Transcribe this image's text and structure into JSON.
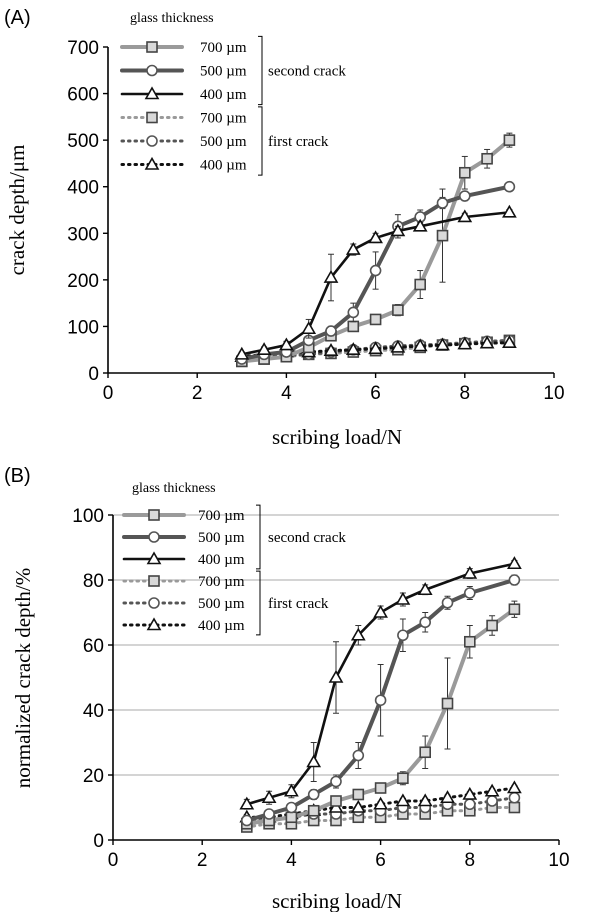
{
  "colors": {
    "s700": "#9a9a9a",
    "s500": "#555555",
    "s400": "#111111"
  },
  "chart_data": [
    {
      "panel": "(A)",
      "type": "line",
      "xlabel": "scribing load/N",
      "ylabel": "crack depth/μm",
      "xlim": [
        0,
        10
      ],
      "ylim": [
        0,
        700
      ],
      "xticks": [
        0,
        2,
        4,
        6,
        8,
        10
      ],
      "yticks": [
        0,
        100,
        200,
        300,
        400,
        500,
        600,
        700
      ],
      "grid": false,
      "legend_title": "glass thickness",
      "legend_groups": [
        "second crack",
        "first crack"
      ],
      "series": [
        {
          "name": "700 µm",
          "group": "second crack",
          "style": "solid",
          "marker": "square",
          "color": "#9a9a9a",
          "x": [
            3,
            3.5,
            4,
            4.5,
            5,
            5.5,
            6,
            6.5,
            7,
            7.5,
            8,
            8.5,
            9
          ],
          "y": [
            25,
            30,
            35,
            55,
            80,
            100,
            115,
            135,
            190,
            295,
            430,
            460,
            500
          ],
          "err": [
            4,
            4,
            5,
            6,
            8,
            10,
            10,
            12,
            30,
            100,
            35,
            20,
            15
          ]
        },
        {
          "name": "500 µm",
          "group": "second crack",
          "style": "solid",
          "marker": "circle",
          "color": "#555555",
          "x": [
            3,
            3.5,
            4,
            4.5,
            5,
            5.5,
            6,
            6.5,
            7,
            7.5,
            8,
            9
          ],
          "y": [
            30,
            40,
            45,
            70,
            90,
            130,
            220,
            315,
            335,
            365,
            380,
            400
          ],
          "err": [
            4,
            4,
            5,
            8,
            10,
            20,
            40,
            25,
            15,
            12,
            10,
            8
          ]
        },
        {
          "name": "400 µm",
          "group": "second crack",
          "style": "solid",
          "marker": "triangle",
          "color": "#111111",
          "x": [
            3,
            3.5,
            4,
            4.5,
            5,
            5.5,
            6,
            6.5,
            7,
            8,
            9
          ],
          "y": [
            40,
            50,
            60,
            95,
            205,
            265,
            290,
            305,
            315,
            335,
            345
          ],
          "err": [
            5,
            6,
            8,
            20,
            50,
            12,
            10,
            10,
            8,
            8,
            6
          ]
        },
        {
          "name": "700 µm",
          "group": "first crack",
          "style": "dotted",
          "marker": "square",
          "color": "#9a9a9a",
          "x": [
            3,
            3.5,
            4,
            4.5,
            5,
            5.5,
            6,
            6.5,
            7,
            7.5,
            8,
            8.5,
            9
          ],
          "y": [
            25,
            30,
            35,
            40,
            42,
            45,
            48,
            50,
            55,
            60,
            63,
            66,
            70
          ],
          "err": [
            3,
            3,
            3,
            3,
            4,
            4,
            4,
            4,
            4,
            4,
            4,
            4,
            4
          ]
        },
        {
          "name": "500 µm",
          "group": "first crack",
          "style": "dotted",
          "marker": "circle",
          "color": "#555555",
          "x": [
            3,
            3.5,
            4,
            4.5,
            5,
            5.5,
            6,
            6.5,
            7,
            7.5,
            8,
            8.5,
            9
          ],
          "y": [
            30,
            35,
            38,
            40,
            45,
            50,
            55,
            58,
            60,
            62,
            65,
            68,
            70
          ],
          "err": [
            3,
            3,
            3,
            3,
            4,
            4,
            4,
            4,
            4,
            4,
            4,
            4,
            4
          ]
        },
        {
          "name": "400 µm",
          "group": "first crack",
          "style": "dotted",
          "marker": "triangle",
          "color": "#111111",
          "x": [
            3,
            3.5,
            4,
            4.5,
            5,
            5.5,
            6,
            6.5,
            7,
            7.5,
            8,
            8.5,
            9
          ],
          "y": [
            35,
            40,
            45,
            45,
            48,
            50,
            52,
            55,
            58,
            60,
            62,
            64,
            65
          ],
          "err": [
            3,
            3,
            3,
            3,
            4,
            4,
            4,
            4,
            4,
            4,
            4,
            4,
            4
          ]
        }
      ]
    },
    {
      "panel": "(B)",
      "type": "line",
      "xlabel": "scribing load/N",
      "ylabel": "normalized crack depth/%",
      "xlim": [
        0,
        10
      ],
      "ylim": [
        0,
        100
      ],
      "xticks": [
        0,
        2,
        4,
        6,
        8,
        10
      ],
      "yticks": [
        0,
        20,
        40,
        60,
        80,
        100
      ],
      "grid": true,
      "legend_title": "glass thickness",
      "legend_groups": [
        "second crack",
        "first crack"
      ],
      "series": [
        {
          "name": "700 µm",
          "group": "second crack",
          "style": "solid",
          "marker": "square",
          "color": "#9a9a9a",
          "x": [
            3,
            3.5,
            4,
            4.5,
            5,
            5.5,
            6,
            6.5,
            7,
            7.5,
            8,
            8.5,
            9
          ],
          "y": [
            5,
            6,
            7,
            9,
            12,
            14,
            16,
            19,
            27,
            42,
            61,
            66,
            71
          ],
          "err": [
            1,
            1,
            1,
            1,
            1.5,
            1.5,
            1.5,
            2,
            5,
            14,
            5,
            3,
            2.5
          ]
        },
        {
          "name": "500 µm",
          "group": "second crack",
          "style": "solid",
          "marker": "circle",
          "color": "#555555",
          "x": [
            3,
            3.5,
            4,
            4.5,
            5,
            5.5,
            6,
            6.5,
            7,
            7.5,
            8,
            9
          ],
          "y": [
            6,
            8,
            10,
            14,
            18,
            26,
            43,
            63,
            67,
            73,
            76,
            80
          ],
          "err": [
            1,
            1,
            1,
            1.5,
            2,
            4,
            11,
            5,
            3,
            2,
            2,
            1.5
          ]
        },
        {
          "name": "400 µm",
          "group": "second crack",
          "style": "solid",
          "marker": "triangle",
          "color": "#111111",
          "x": [
            3,
            3.5,
            4,
            4.5,
            5,
            5.5,
            6,
            6.5,
            7,
            8,
            9
          ],
          "y": [
            11,
            13,
            15,
            24,
            50,
            63,
            70,
            74,
            77,
            82,
            85
          ],
          "err": [
            1.5,
            2,
            2,
            6,
            11,
            3,
            2,
            2,
            1.5,
            1.5,
            1
          ]
        },
        {
          "name": "700 µm",
          "group": "first crack",
          "style": "dotted",
          "marker": "square",
          "color": "#9a9a9a",
          "x": [
            3,
            3.5,
            4,
            4.5,
            5,
            5.5,
            6,
            6.5,
            7,
            7.5,
            8,
            8.5,
            9
          ],
          "y": [
            4,
            5,
            5,
            6,
            6,
            7,
            7,
            8,
            8,
            9,
            9,
            10,
            10
          ],
          "err": [
            0.8,
            0.8,
            0.8,
            0.8,
            0.8,
            0.8,
            0.8,
            0.8,
            0.8,
            0.8,
            0.8,
            0.8,
            0.8
          ]
        },
        {
          "name": "500 µm",
          "group": "first crack",
          "style": "dotted",
          "marker": "circle",
          "color": "#555555",
          "x": [
            3,
            3.5,
            4,
            4.5,
            5,
            5.5,
            6,
            6.5,
            7,
            7.5,
            8,
            8.5,
            9
          ],
          "y": [
            6,
            7,
            7,
            8,
            8,
            9,
            9,
            10,
            10,
            11,
            11,
            12,
            13
          ],
          "err": [
            0.8,
            0.8,
            0.8,
            0.8,
            0.8,
            0.8,
            0.8,
            0.8,
            0.8,
            0.8,
            0.8,
            0.8,
            0.8
          ]
        },
        {
          "name": "400 µm",
          "group": "first crack",
          "style": "dotted",
          "marker": "triangle",
          "color": "#111111",
          "x": [
            3,
            3.5,
            4,
            4.5,
            5,
            5.5,
            6,
            6.5,
            7,
            7.5,
            8,
            8.5,
            9
          ],
          "y": [
            7,
            7,
            8,
            9,
            10,
            10,
            11,
            12,
            12,
            13,
            14,
            15,
            16
          ],
          "err": [
            0.8,
            0.8,
            0.8,
            0.8,
            0.8,
            0.8,
            0.8,
            0.8,
            0.8,
            0.8,
            0.8,
            0.8,
            0.8
          ]
        }
      ]
    }
  ]
}
